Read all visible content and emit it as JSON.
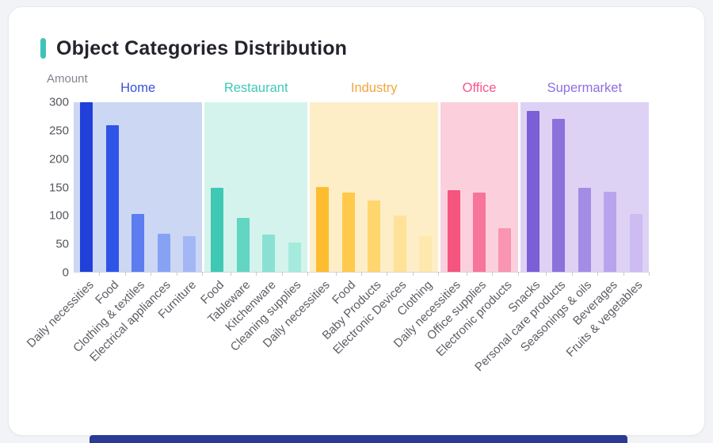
{
  "page": {
    "background": "#f2f3f6",
    "card_background": "#ffffff",
    "bottom_strip_color": "#2b3a94"
  },
  "title": {
    "text": "Object Categories Distribution",
    "accent_color": "#3fc3b6"
  },
  "chart_data": {
    "type": "bar",
    "title": "Object Categories Distribution",
    "xlabel": "",
    "ylabel": "Amount",
    "ylim": [
      0,
      300
    ],
    "yticks": [
      0,
      50,
      100,
      150,
      200,
      250,
      300
    ],
    "grid": false,
    "legend_position": "none",
    "groups": [
      {
        "name": "Home",
        "label_color": "#3a50d9",
        "band_color": "#ccd7f4",
        "categories": [
          "Daily necessities",
          "Food",
          "Clothing & textiles",
          "Electrical appliances",
          "Furniture"
        ],
        "values": [
          300,
          259,
          102,
          68,
          63
        ],
        "bar_colors": [
          "#2040d9",
          "#2f54e8",
          "#5c7cf0",
          "#87a2f4",
          "#a3b7f7"
        ]
      },
      {
        "name": "Restaurant",
        "label_color": "#3ec9b6",
        "band_color": "#d4f3ec",
        "categories": [
          "Food",
          "Tableware",
          "Kitchenware",
          "Cleaning supplies"
        ],
        "values": [
          149,
          96,
          66,
          52
        ],
        "bar_colors": [
          "#3fc8b4",
          "#62d5c3",
          "#8ae1d3",
          "#a5ebdd"
        ]
      },
      {
        "name": "Industry",
        "label_color": "#efa73c",
        "band_color": "#fdeec8",
        "categories": [
          "Daily necessities",
          "Food",
          "Baby Products",
          "Electronic Devices",
          "Clothing"
        ],
        "values": [
          150,
          140,
          126,
          99,
          63
        ],
        "bar_colors": [
          "#fdbd2e",
          "#ffc94b",
          "#ffd56d",
          "#ffe198",
          "#ffe8ad"
        ]
      },
      {
        "name": "Office",
        "label_color": "#f6558b",
        "band_color": "#fbd0dc",
        "categories": [
          "Daily necessities",
          "Office supplies",
          "Electronic products"
        ],
        "values": [
          144,
          140,
          77
        ],
        "bar_colors": [
          "#f4547e",
          "#f7749a",
          "#f994b2"
        ]
      },
      {
        "name": "Supermarket",
        "label_color": "#8b6fe0",
        "band_color": "#ddd2f4",
        "categories": [
          "Snacks",
          "Personal care products",
          "Seasonings & oils",
          "Beverages",
          "Fruits & vegetables"
        ],
        "values": [
          285,
          271,
          149,
          141,
          102
        ],
        "bar_colors": [
          "#7a5fd6",
          "#8a71dc",
          "#a48ce5",
          "#b8a4ec",
          "#ccbcf2"
        ]
      }
    ]
  }
}
